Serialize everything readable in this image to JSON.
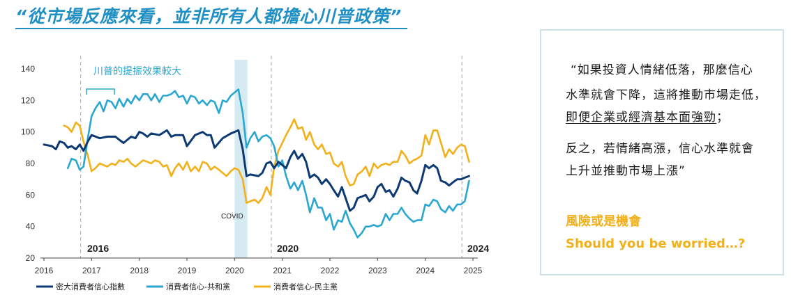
{
  "title": "“從市場反應來看，並非所有人都擔心川普政策”",
  "colors": {
    "title": "#1f8fc4",
    "composite": "#0e3a73",
    "republican": "#2aa7d0",
    "democrat": "#f2b11a",
    "highlight": "#f2b11a"
  },
  "chart_data": {
    "type": "line",
    "ylim": [
      20,
      140
    ],
    "yticks": [
      20,
      40,
      60,
      80,
      100,
      120,
      140
    ],
    "xlim": [
      2016,
      2025
    ],
    "xticks": [
      "2016",
      "2017",
      "2018",
      "2019",
      "2020",
      "2021",
      "2022",
      "2023",
      "2024",
      "2025"
    ],
    "annotations": {
      "trump_boost": "川普的提振效果較大",
      "covid": "COVID",
      "year_2016": "2016",
      "year_2020": "2020",
      "year_2024": "2024"
    },
    "covid_band": [
      2020.0,
      2020.27
    ],
    "election_lines": [
      2016.77,
      2020.77,
      2024.77
    ],
    "series": [
      {
        "name": "密大消費者信心指數",
        "color": "#0e3a73",
        "points": [
          [
            2016.0,
            92
          ],
          [
            2016.17,
            91
          ],
          [
            2016.25,
            89
          ],
          [
            2016.33,
            94
          ],
          [
            2016.42,
            93
          ],
          [
            2016.5,
            90
          ],
          [
            2016.58,
            91
          ],
          [
            2016.67,
            89
          ],
          [
            2016.75,
            92
          ],
          [
            2016.83,
            88
          ],
          [
            2016.92,
            94
          ],
          [
            2017.0,
            98
          ],
          [
            2017.17,
            96
          ],
          [
            2017.33,
            97
          ],
          [
            2017.5,
            97
          ],
          [
            2017.58,
            95
          ],
          [
            2017.67,
            93
          ],
          [
            2017.83,
            97
          ],
          [
            2017.92,
            96
          ],
          [
            2018.0,
            100
          ],
          [
            2018.08,
            99
          ],
          [
            2018.17,
            97
          ],
          [
            2018.25,
            99
          ],
          [
            2018.42,
            98
          ],
          [
            2018.58,
            101
          ],
          [
            2018.67,
            97
          ],
          [
            2018.75,
            98
          ],
          [
            2018.92,
            98
          ],
          [
            2019.0,
            91
          ],
          [
            2019.17,
            98
          ],
          [
            2019.33,
            100
          ],
          [
            2019.42,
            98
          ],
          [
            2019.5,
            98
          ],
          [
            2019.58,
            90
          ],
          [
            2019.75,
            96
          ],
          [
            2019.92,
            99
          ],
          [
            2020.0,
            100
          ],
          [
            2020.08,
            101
          ],
          [
            2020.17,
            89
          ],
          [
            2020.25,
            72
          ],
          [
            2020.33,
            73
          ],
          [
            2020.5,
            72
          ],
          [
            2020.58,
            74
          ],
          [
            2020.67,
            80
          ],
          [
            2020.75,
            81
          ],
          [
            2020.83,
            77
          ],
          [
            2020.92,
            81
          ],
          [
            2021.0,
            79
          ],
          [
            2021.08,
            77
          ],
          [
            2021.17,
            84
          ],
          [
            2021.25,
            88
          ],
          [
            2021.33,
            83
          ],
          [
            2021.42,
            86
          ],
          [
            2021.5,
            81
          ],
          [
            2021.58,
            71
          ],
          [
            2021.67,
            73
          ],
          [
            2021.75,
            71
          ],
          [
            2021.83,
            67
          ],
          [
            2021.92,
            70
          ],
          [
            2022.0,
            67
          ],
          [
            2022.08,
            63
          ],
          [
            2022.17,
            59
          ],
          [
            2022.25,
            65
          ],
          [
            2022.33,
            58
          ],
          [
            2022.42,
            50
          ],
          [
            2022.5,
            52
          ],
          [
            2022.58,
            58
          ],
          [
            2022.67,
            59
          ],
          [
            2022.75,
            60
          ],
          [
            2022.83,
            56
          ],
          [
            2022.92,
            59
          ],
          [
            2023.0,
            65
          ],
          [
            2023.08,
            67
          ],
          [
            2023.17,
            62
          ],
          [
            2023.25,
            63
          ],
          [
            2023.33,
            59
          ],
          [
            2023.42,
            64
          ],
          [
            2023.5,
            71
          ],
          [
            2023.58,
            69
          ],
          [
            2023.67,
            68
          ],
          [
            2023.75,
            63
          ],
          [
            2023.83,
            61
          ],
          [
            2023.92,
            69
          ],
          [
            2024.0,
            79
          ],
          [
            2024.08,
            77
          ],
          [
            2024.17,
            79
          ],
          [
            2024.25,
            77
          ],
          [
            2024.33,
            69
          ],
          [
            2024.42,
            68
          ],
          [
            2024.5,
            66
          ],
          [
            2024.58,
            68
          ],
          [
            2024.67,
            70
          ],
          [
            2024.75,
            70
          ],
          [
            2024.83,
            71
          ],
          [
            2024.92,
            72
          ]
        ]
      },
      {
        "name": "消費者信心-共和黨",
        "color": "#2aa7d0",
        "points": [
          [
            2016.5,
            77
          ],
          [
            2016.58,
            83
          ],
          [
            2016.67,
            82
          ],
          [
            2016.75,
            76
          ],
          [
            2016.83,
            78
          ],
          [
            2016.92,
            96
          ],
          [
            2017.0,
            110
          ],
          [
            2017.08,
            115
          ],
          [
            2017.17,
            119
          ],
          [
            2017.25,
            113
          ],
          [
            2017.33,
            120
          ],
          [
            2017.42,
            119
          ],
          [
            2017.5,
            115
          ],
          [
            2017.58,
            121
          ],
          [
            2017.67,
            116
          ],
          [
            2017.75,
            121
          ],
          [
            2017.83,
            118
          ],
          [
            2017.92,
            123
          ],
          [
            2018.0,
            120
          ],
          [
            2018.08,
            124
          ],
          [
            2018.17,
            124
          ],
          [
            2018.25,
            120
          ],
          [
            2018.33,
            124
          ],
          [
            2018.42,
            119
          ],
          [
            2018.5,
            123
          ],
          [
            2018.58,
            123
          ],
          [
            2018.67,
            124
          ],
          [
            2018.75,
            126
          ],
          [
            2018.83,
            122
          ],
          [
            2018.92,
            123
          ],
          [
            2019.0,
            118
          ],
          [
            2019.08,
            123
          ],
          [
            2019.17,
            122
          ],
          [
            2019.25,
            118
          ],
          [
            2019.33,
            120
          ],
          [
            2019.42,
            117
          ],
          [
            2019.5,
            120
          ],
          [
            2019.58,
            119
          ],
          [
            2019.67,
            112
          ],
          [
            2019.75,
            120
          ],
          [
            2019.83,
            119
          ],
          [
            2019.92,
            123
          ],
          [
            2020.0,
            125
          ],
          [
            2020.08,
            127
          ],
          [
            2020.17,
            112
          ],
          [
            2020.25,
            90
          ],
          [
            2020.33,
            96
          ],
          [
            2020.42,
            100
          ],
          [
            2020.5,
            94
          ],
          [
            2020.58,
            97
          ],
          [
            2020.67,
            98
          ],
          [
            2020.75,
            96
          ],
          [
            2020.83,
            91
          ],
          [
            2020.92,
            78
          ],
          [
            2021.0,
            82
          ],
          [
            2021.08,
            72
          ],
          [
            2021.17,
            64
          ],
          [
            2021.25,
            68
          ],
          [
            2021.33,
            63
          ],
          [
            2021.42,
            69
          ],
          [
            2021.5,
            60
          ],
          [
            2021.58,
            49
          ],
          [
            2021.67,
            58
          ],
          [
            2021.75,
            52
          ],
          [
            2021.83,
            52
          ],
          [
            2021.92,
            44
          ],
          [
            2022.0,
            48
          ],
          [
            2022.08,
            38
          ],
          [
            2022.17,
            44
          ],
          [
            2022.25,
            43
          ],
          [
            2022.33,
            50
          ],
          [
            2022.42,
            42
          ],
          [
            2022.5,
            38
          ],
          [
            2022.58,
            33
          ],
          [
            2022.67,
            36
          ],
          [
            2022.75,
            40
          ],
          [
            2022.83,
            40
          ],
          [
            2022.92,
            41
          ],
          [
            2023.0,
            40
          ],
          [
            2023.08,
            41
          ],
          [
            2023.17,
            48
          ],
          [
            2023.25,
            44
          ],
          [
            2023.33,
            48
          ],
          [
            2023.42,
            48
          ],
          [
            2023.5,
            52
          ],
          [
            2023.58,
            48
          ],
          [
            2023.67,
            45
          ],
          [
            2023.75,
            43
          ],
          [
            2023.83,
            44
          ],
          [
            2023.92,
            44
          ],
          [
            2024.0,
            54
          ],
          [
            2024.08,
            53
          ],
          [
            2024.17,
            57
          ],
          [
            2024.25,
            56
          ],
          [
            2024.33,
            51
          ],
          [
            2024.42,
            49
          ],
          [
            2024.5,
            53
          ],
          [
            2024.58,
            50
          ],
          [
            2024.67,
            54
          ],
          [
            2024.75,
            54
          ],
          [
            2024.83,
            56
          ],
          [
            2024.92,
            69
          ]
        ]
      },
      {
        "name": "消費者信心-民主黨",
        "color": "#f2b11a",
        "points": [
          [
            2016.42,
            104
          ],
          [
            2016.5,
            103
          ],
          [
            2016.58,
            100
          ],
          [
            2016.67,
            106
          ],
          [
            2016.75,
            104
          ],
          [
            2016.83,
            94
          ],
          [
            2016.92,
            85
          ],
          [
            2017.0,
            75
          ],
          [
            2017.08,
            77
          ],
          [
            2017.17,
            80
          ],
          [
            2017.25,
            79
          ],
          [
            2017.33,
            78
          ],
          [
            2017.42,
            80
          ],
          [
            2017.5,
            79
          ],
          [
            2017.58,
            82
          ],
          [
            2017.67,
            81
          ],
          [
            2017.75,
            83
          ],
          [
            2017.83,
            80
          ],
          [
            2017.92,
            78
          ],
          [
            2018.0,
            80
          ],
          [
            2018.08,
            82
          ],
          [
            2018.17,
            81
          ],
          [
            2018.25,
            80
          ],
          [
            2018.33,
            82
          ],
          [
            2018.42,
            81
          ],
          [
            2018.5,
            78
          ],
          [
            2018.58,
            79
          ],
          [
            2018.67,
            72
          ],
          [
            2018.75,
            77
          ],
          [
            2018.83,
            80
          ],
          [
            2018.92,
            76
          ],
          [
            2019.0,
            81
          ],
          [
            2019.08,
            75
          ],
          [
            2019.17,
            78
          ],
          [
            2019.25,
            75
          ],
          [
            2019.33,
            81
          ],
          [
            2019.42,
            80
          ],
          [
            2019.5,
            76
          ],
          [
            2019.58,
            78
          ],
          [
            2019.67,
            76
          ],
          [
            2019.75,
            74
          ],
          [
            2019.83,
            72
          ],
          [
            2019.92,
            75
          ],
          [
            2020.0,
            77
          ],
          [
            2020.08,
            76
          ],
          [
            2020.17,
            70
          ],
          [
            2020.25,
            55
          ],
          [
            2020.33,
            56
          ],
          [
            2020.42,
            57
          ],
          [
            2020.5,
            55
          ],
          [
            2020.58,
            58
          ],
          [
            2020.67,
            65
          ],
          [
            2020.75,
            60
          ],
          [
            2020.83,
            78
          ],
          [
            2020.92,
            88
          ],
          [
            2021.0,
            93
          ],
          [
            2021.08,
            98
          ],
          [
            2021.17,
            103
          ],
          [
            2021.25,
            108
          ],
          [
            2021.33,
            102
          ],
          [
            2021.42,
            103
          ],
          [
            2021.5,
            95
          ],
          [
            2021.58,
            100
          ],
          [
            2021.67,
            92
          ],
          [
            2021.75,
            89
          ],
          [
            2021.83,
            92
          ],
          [
            2021.92,
            86
          ],
          [
            2022.0,
            87
          ],
          [
            2022.08,
            80
          ],
          [
            2022.17,
            78
          ],
          [
            2022.25,
            81
          ],
          [
            2022.33,
            72
          ],
          [
            2022.42,
            66
          ],
          [
            2022.5,
            67
          ],
          [
            2022.58,
            73
          ],
          [
            2022.67,
            75
          ],
          [
            2022.75,
            78
          ],
          [
            2022.83,
            72
          ],
          [
            2022.92,
            80
          ],
          [
            2023.0,
            77
          ],
          [
            2023.08,
            79
          ],
          [
            2023.17,
            80
          ],
          [
            2023.25,
            79
          ],
          [
            2023.33,
            81
          ],
          [
            2023.42,
            81
          ],
          [
            2023.5,
            88
          ],
          [
            2023.58,
            85
          ],
          [
            2023.67,
            80
          ],
          [
            2023.75,
            82
          ],
          [
            2023.83,
            83
          ],
          [
            2023.92,
            85
          ],
          [
            2024.0,
            98
          ],
          [
            2024.08,
            92
          ],
          [
            2024.17,
            101
          ],
          [
            2024.25,
            101
          ],
          [
            2024.33,
            93
          ],
          [
            2024.42,
            84
          ],
          [
            2024.5,
            89
          ],
          [
            2024.58,
            86
          ],
          [
            2024.67,
            90
          ],
          [
            2024.75,
            92
          ],
          [
            2024.83,
            91
          ],
          [
            2024.92,
            81
          ]
        ]
      }
    ]
  },
  "quote": {
    "line1": "“如果投資人情緒低落，那麼信心",
    "line2": "水準就會下降，這將推動市場走低，",
    "line3": "即便企業或經濟基本面強勁",
    "line3_tail": "；",
    "line4": "反之，若情緒高漲，信心水準就會",
    "line5": "上升並推動市場上漲”",
    "highlight_zh": "風險或是機會",
    "highlight_en": "Should you be worried…?"
  }
}
